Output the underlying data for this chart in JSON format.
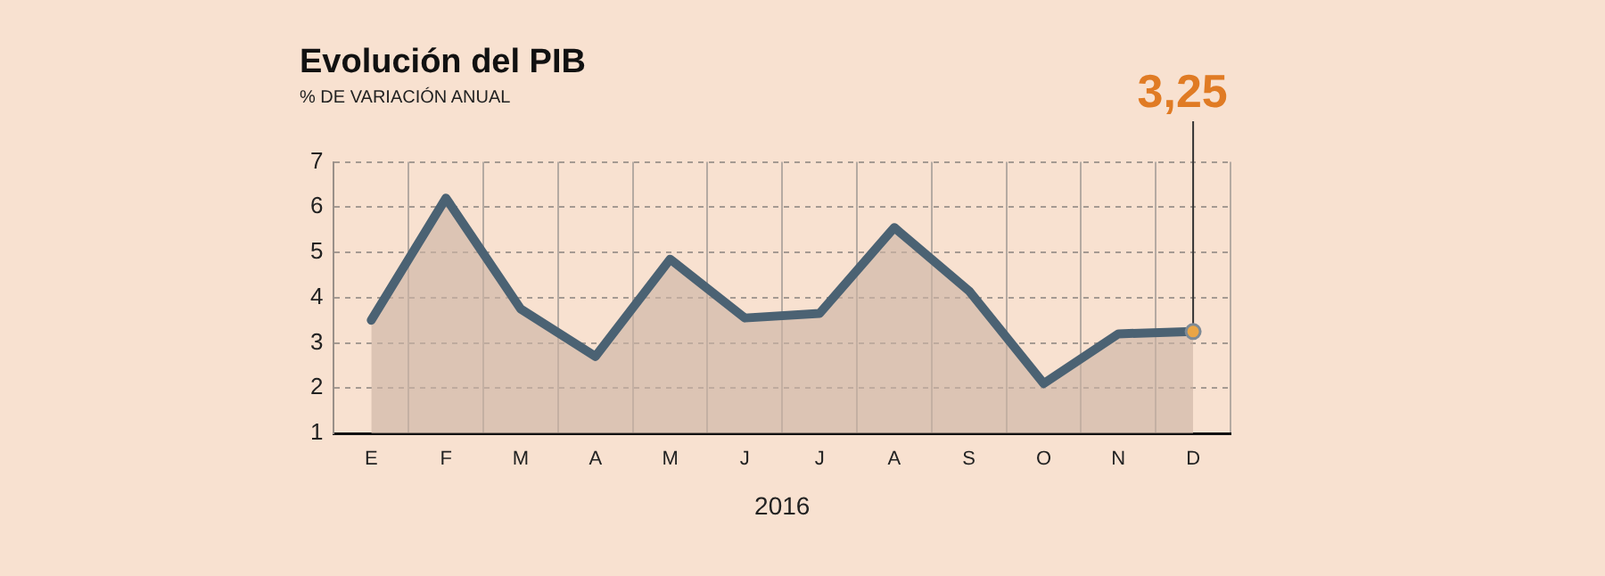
{
  "chart_data": {
    "type": "area",
    "title": "Evolución del PIB",
    "subtitle": "% DE VARIACIÓN ANUAL",
    "xlabel": "2016",
    "categories": [
      "E",
      "F",
      "M",
      "A",
      "M",
      "J",
      "J",
      "A",
      "S",
      "O",
      "N",
      "D"
    ],
    "series": [
      {
        "color": "#4b6273",
        "values": [
          3.5,
          6.2,
          3.75,
          2.7,
          4.85,
          3.55,
          3.65,
          5.55,
          4.15,
          2.1,
          3.2,
          3.25
        ],
        "value_labels": [
          null,
          null,
          null,
          null,
          null,
          null,
          null,
          null,
          null,
          null,
          null,
          "3,25"
        ]
      }
    ],
    "ylim": [
      1,
      7
    ],
    "yticks": [
      1,
      2,
      3,
      4,
      5,
      6,
      7
    ],
    "grid": true,
    "legend": false,
    "marker": "none"
  }
}
